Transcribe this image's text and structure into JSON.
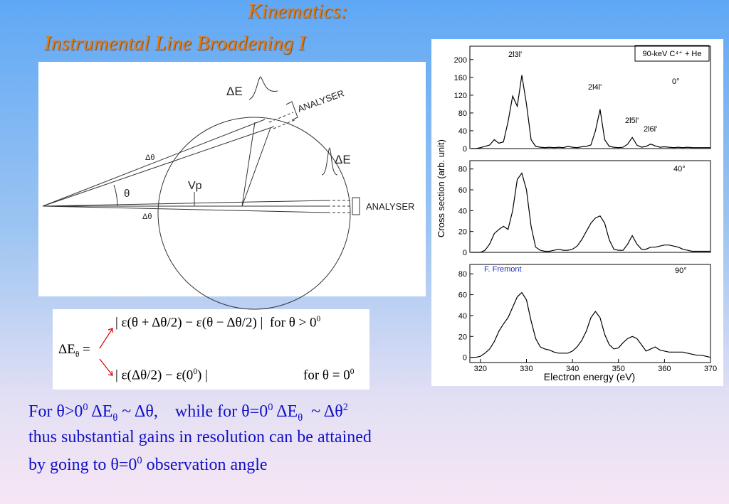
{
  "slide": {
    "title": [
      "Kinematics:",
      "Instrumental Line Broadening I"
    ],
    "diagram": {
      "labels": [
        "ΔE",
        "ANALYSER",
        "Δθ",
        "θ",
        "Vp",
        "Δθ",
        "ΔE",
        "ANALYSER"
      ]
    },
    "formula": {
      "lhs": "ΔE",
      "lhs_sub": "θ",
      "eq": "=",
      "case1": "| ε(θ + Δθ/2) − ε(θ − Δθ/2) |  for θ > 0",
      "case1_sup": "0",
      "case2": "| ε(Δθ/2) − ε(0",
      "case2_sup": "0",
      "case2_end": ") |",
      "case2_cond": "for θ = 0",
      "case2_cond_sup": "0"
    },
    "caption": {
      "line1": [
        "For θ>0",
        "0",
        " ΔE",
        "θ",
        " ~ Δθ,    while for θ=0",
        "0",
        " ΔE",
        "θ",
        "  ~ Δθ",
        "2"
      ],
      "line2": "thus substantial gains in resolution can be attained",
      "line3": [
        "by going to θ=0",
        "0",
        " observation angle"
      ]
    }
  },
  "chart_data": [
    {
      "type": "line",
      "title": "90-keV C⁴⁺ + He",
      "annotations": [
        "2l3l'",
        "2l4l'",
        "2l5l'",
        "2l6l'",
        "0°"
      ],
      "x": [
        318,
        319,
        320,
        321,
        322,
        323,
        324,
        325,
        326,
        327,
        328,
        329,
        330,
        331,
        332,
        333,
        334,
        335,
        336,
        337,
        338,
        339,
        340,
        341,
        342,
        343,
        344,
        345,
        346,
        347,
        348,
        349,
        350,
        351,
        352,
        353,
        354,
        355,
        356,
        357,
        358,
        359,
        360,
        361,
        362,
        363,
        364,
        365,
        366,
        367,
        368,
        369,
        370
      ],
      "series": [
        {
          "color": "#000000",
          "values": [
            0,
            0,
            2,
            5,
            8,
            20,
            12,
            15,
            60,
            118,
            95,
            165,
            100,
            20,
            5,
            3,
            2,
            3,
            2,
            3,
            2,
            5,
            3,
            2,
            4,
            5,
            8,
            40,
            88,
            20,
            5,
            3,
            2,
            3,
            10,
            25,
            8,
            3,
            5,
            10,
            6,
            3,
            4,
            3,
            2,
            3,
            2,
            3,
            2,
            2,
            2,
            2,
            2
          ]
        }
      ],
      "xlim": [
        317.7,
        370
      ],
      "ylim": [
        0,
        230
      ],
      "yticks": [
        0,
        40,
        80,
        120,
        160,
        200
      ]
    },
    {
      "type": "line",
      "ylabel": "Cross section (arb. unit)",
      "annotations": [
        "40°"
      ],
      "x": [
        318,
        319,
        320,
        321,
        322,
        323,
        324,
        325,
        326,
        327,
        328,
        329,
        330,
        331,
        332,
        333,
        334,
        335,
        336,
        337,
        338,
        339,
        340,
        341,
        342,
        343,
        344,
        345,
        346,
        347,
        348,
        349,
        350,
        351,
        352,
        353,
        354,
        355,
        356,
        357,
        358,
        359,
        360,
        361,
        362,
        363,
        364,
        365,
        366,
        367,
        368,
        369,
        370
      ],
      "series": [
        {
          "color": "#000000",
          "values": [
            0,
            0,
            0,
            2,
            8,
            18,
            22,
            25,
            22,
            40,
            70,
            76,
            60,
            25,
            5,
            2,
            1,
            1,
            2,
            3,
            2,
            2,
            3,
            6,
            12,
            20,
            28,
            33,
            35,
            28,
            12,
            3,
            2,
            2,
            8,
            16,
            8,
            3,
            3,
            5,
            5,
            6,
            7,
            7,
            6,
            5,
            3,
            2,
            1,
            1,
            1,
            1,
            1
          ]
        }
      ],
      "xlim": [
        317.7,
        370
      ],
      "ylim": [
        0,
        88
      ],
      "yticks": [
        0,
        20,
        40,
        60,
        80
      ]
    },
    {
      "type": "line",
      "xlabel": "Electron energy (eV)",
      "annotations": [
        "F. Fremont",
        "90°"
      ],
      "x": [
        318,
        319,
        320,
        321,
        322,
        323,
        324,
        325,
        326,
        327,
        328,
        329,
        330,
        331,
        332,
        333,
        334,
        335,
        336,
        337,
        338,
        339,
        340,
        341,
        342,
        343,
        344,
        345,
        346,
        347,
        348,
        349,
        350,
        351,
        352,
        353,
        354,
        355,
        356,
        357,
        358,
        359,
        360,
        361,
        362,
        363,
        364,
        365,
        366,
        367,
        368,
        369,
        370
      ],
      "series": [
        {
          "color": "#000000",
          "values": [
            0,
            0,
            1,
            4,
            8,
            15,
            25,
            32,
            38,
            48,
            58,
            62,
            55,
            35,
            18,
            10,
            8,
            7,
            5,
            4,
            4,
            4,
            6,
            10,
            16,
            25,
            38,
            44,
            38,
            22,
            12,
            8,
            9,
            14,
            18,
            20,
            18,
            12,
            6,
            8,
            10,
            7,
            6,
            5,
            5,
            5,
            5,
            4,
            3,
            2,
            2,
            1,
            0
          ]
        }
      ],
      "xlim": [
        317.7,
        370
      ],
      "ylim": [
        -5,
        89
      ],
      "yticks": [
        0,
        20,
        40,
        60,
        80
      ],
      "xticks": [
        320,
        330,
        340,
        350,
        360,
        370
      ]
    }
  ]
}
